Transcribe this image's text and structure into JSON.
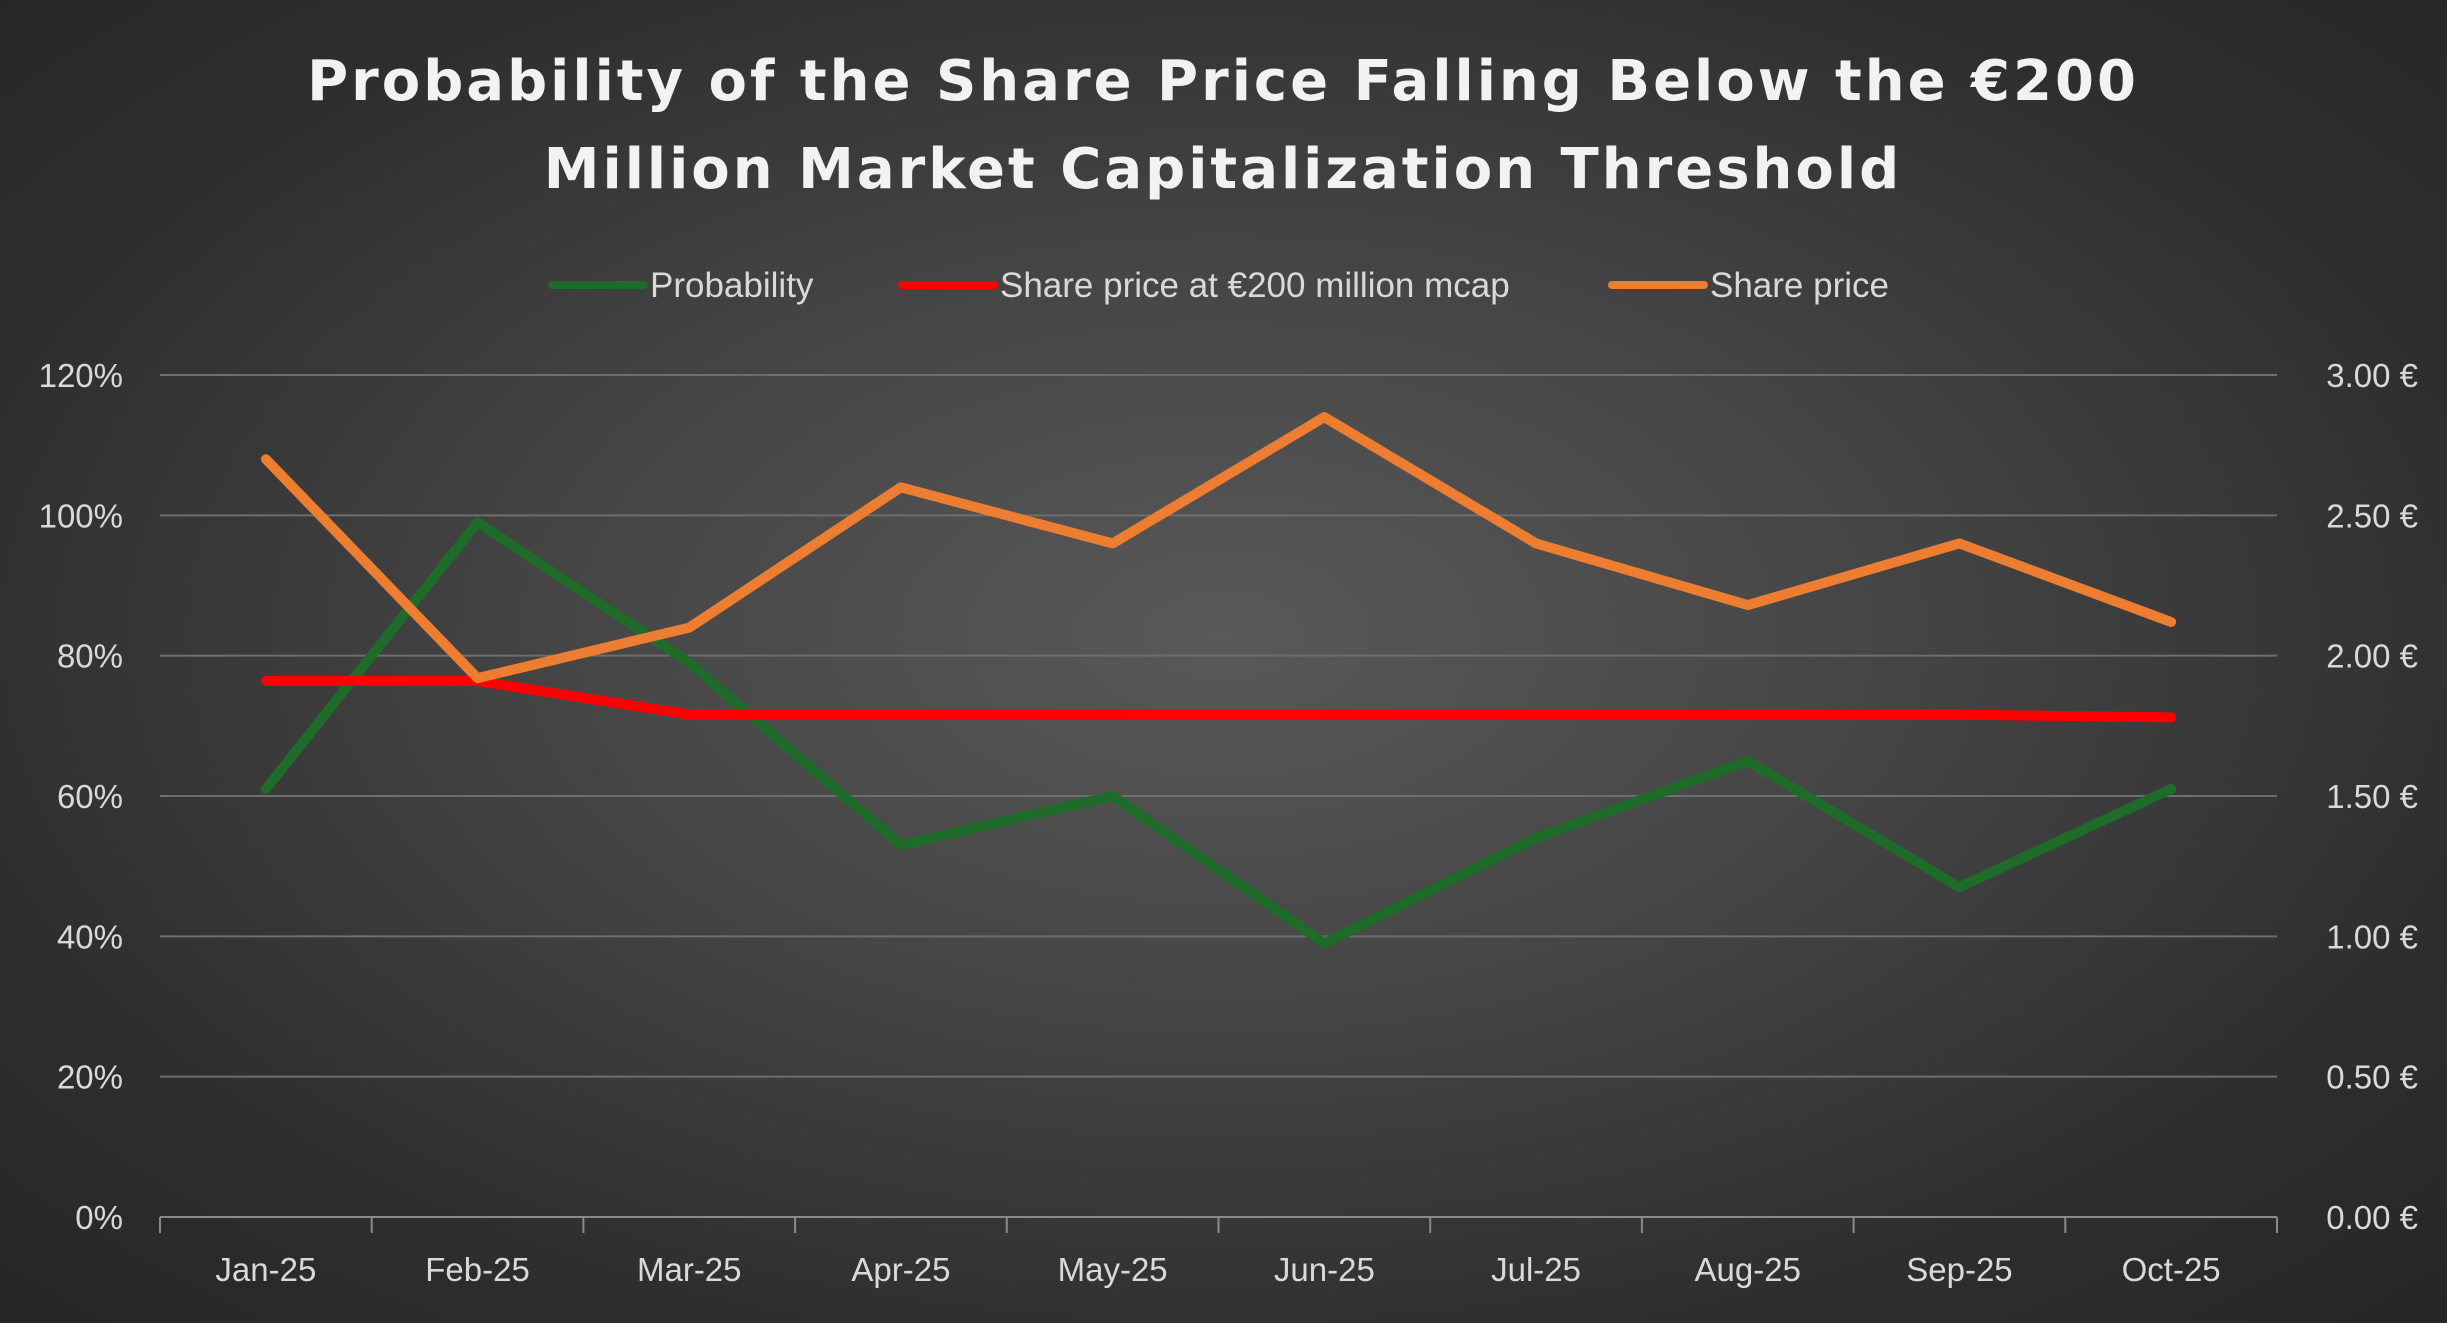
{
  "chart_data": {
    "type": "line",
    "title_lines": [
      "Probability of the Share Price Falling Below the €200",
      "Million Market Capitalization Threshold"
    ],
    "categories": [
      "Jan-25",
      "Feb-25",
      "Mar-25",
      "Apr-25",
      "May-25",
      "Jun-25",
      "Jul-25",
      "Aug-25",
      "Sep-25",
      "Oct-25"
    ],
    "series": [
      {
        "name": "Probability",
        "axis": "left",
        "color": "#1f6b2a",
        "values": [
          0.61,
          0.99,
          0.79,
          0.53,
          0.6,
          0.39,
          0.54,
          0.65,
          0.47,
          0.61
        ]
      },
      {
        "name": "Share price at €200 million mcap",
        "axis": "right",
        "color": "#ff0000",
        "values": [
          1.91,
          1.91,
          1.79,
          1.79,
          1.79,
          1.79,
          1.79,
          1.79,
          1.79,
          1.78
        ]
      },
      {
        "name": "Share price",
        "axis": "right",
        "color": "#ed7d31",
        "values": [
          2.7,
          1.92,
          2.1,
          2.6,
          2.4,
          2.85,
          2.4,
          2.18,
          2.4,
          2.12
        ]
      }
    ],
    "y_left": {
      "min": 0,
      "max": 1.2,
      "ticks": [
        "0%",
        "20%",
        "40%",
        "60%",
        "80%",
        "100%",
        "120%"
      ]
    },
    "y_right": {
      "min": 0,
      "max": 3.0,
      "ticks": [
        "0.00 €",
        "0.50 €",
        "1.00 €",
        "1.50 €",
        "2.00 €",
        "2.50 €",
        "3.00 €"
      ]
    },
    "grid": true,
    "legend_position": "top",
    "gridline_color": "#6e6e6e",
    "axis_line_color": "#8a8a8a"
  }
}
